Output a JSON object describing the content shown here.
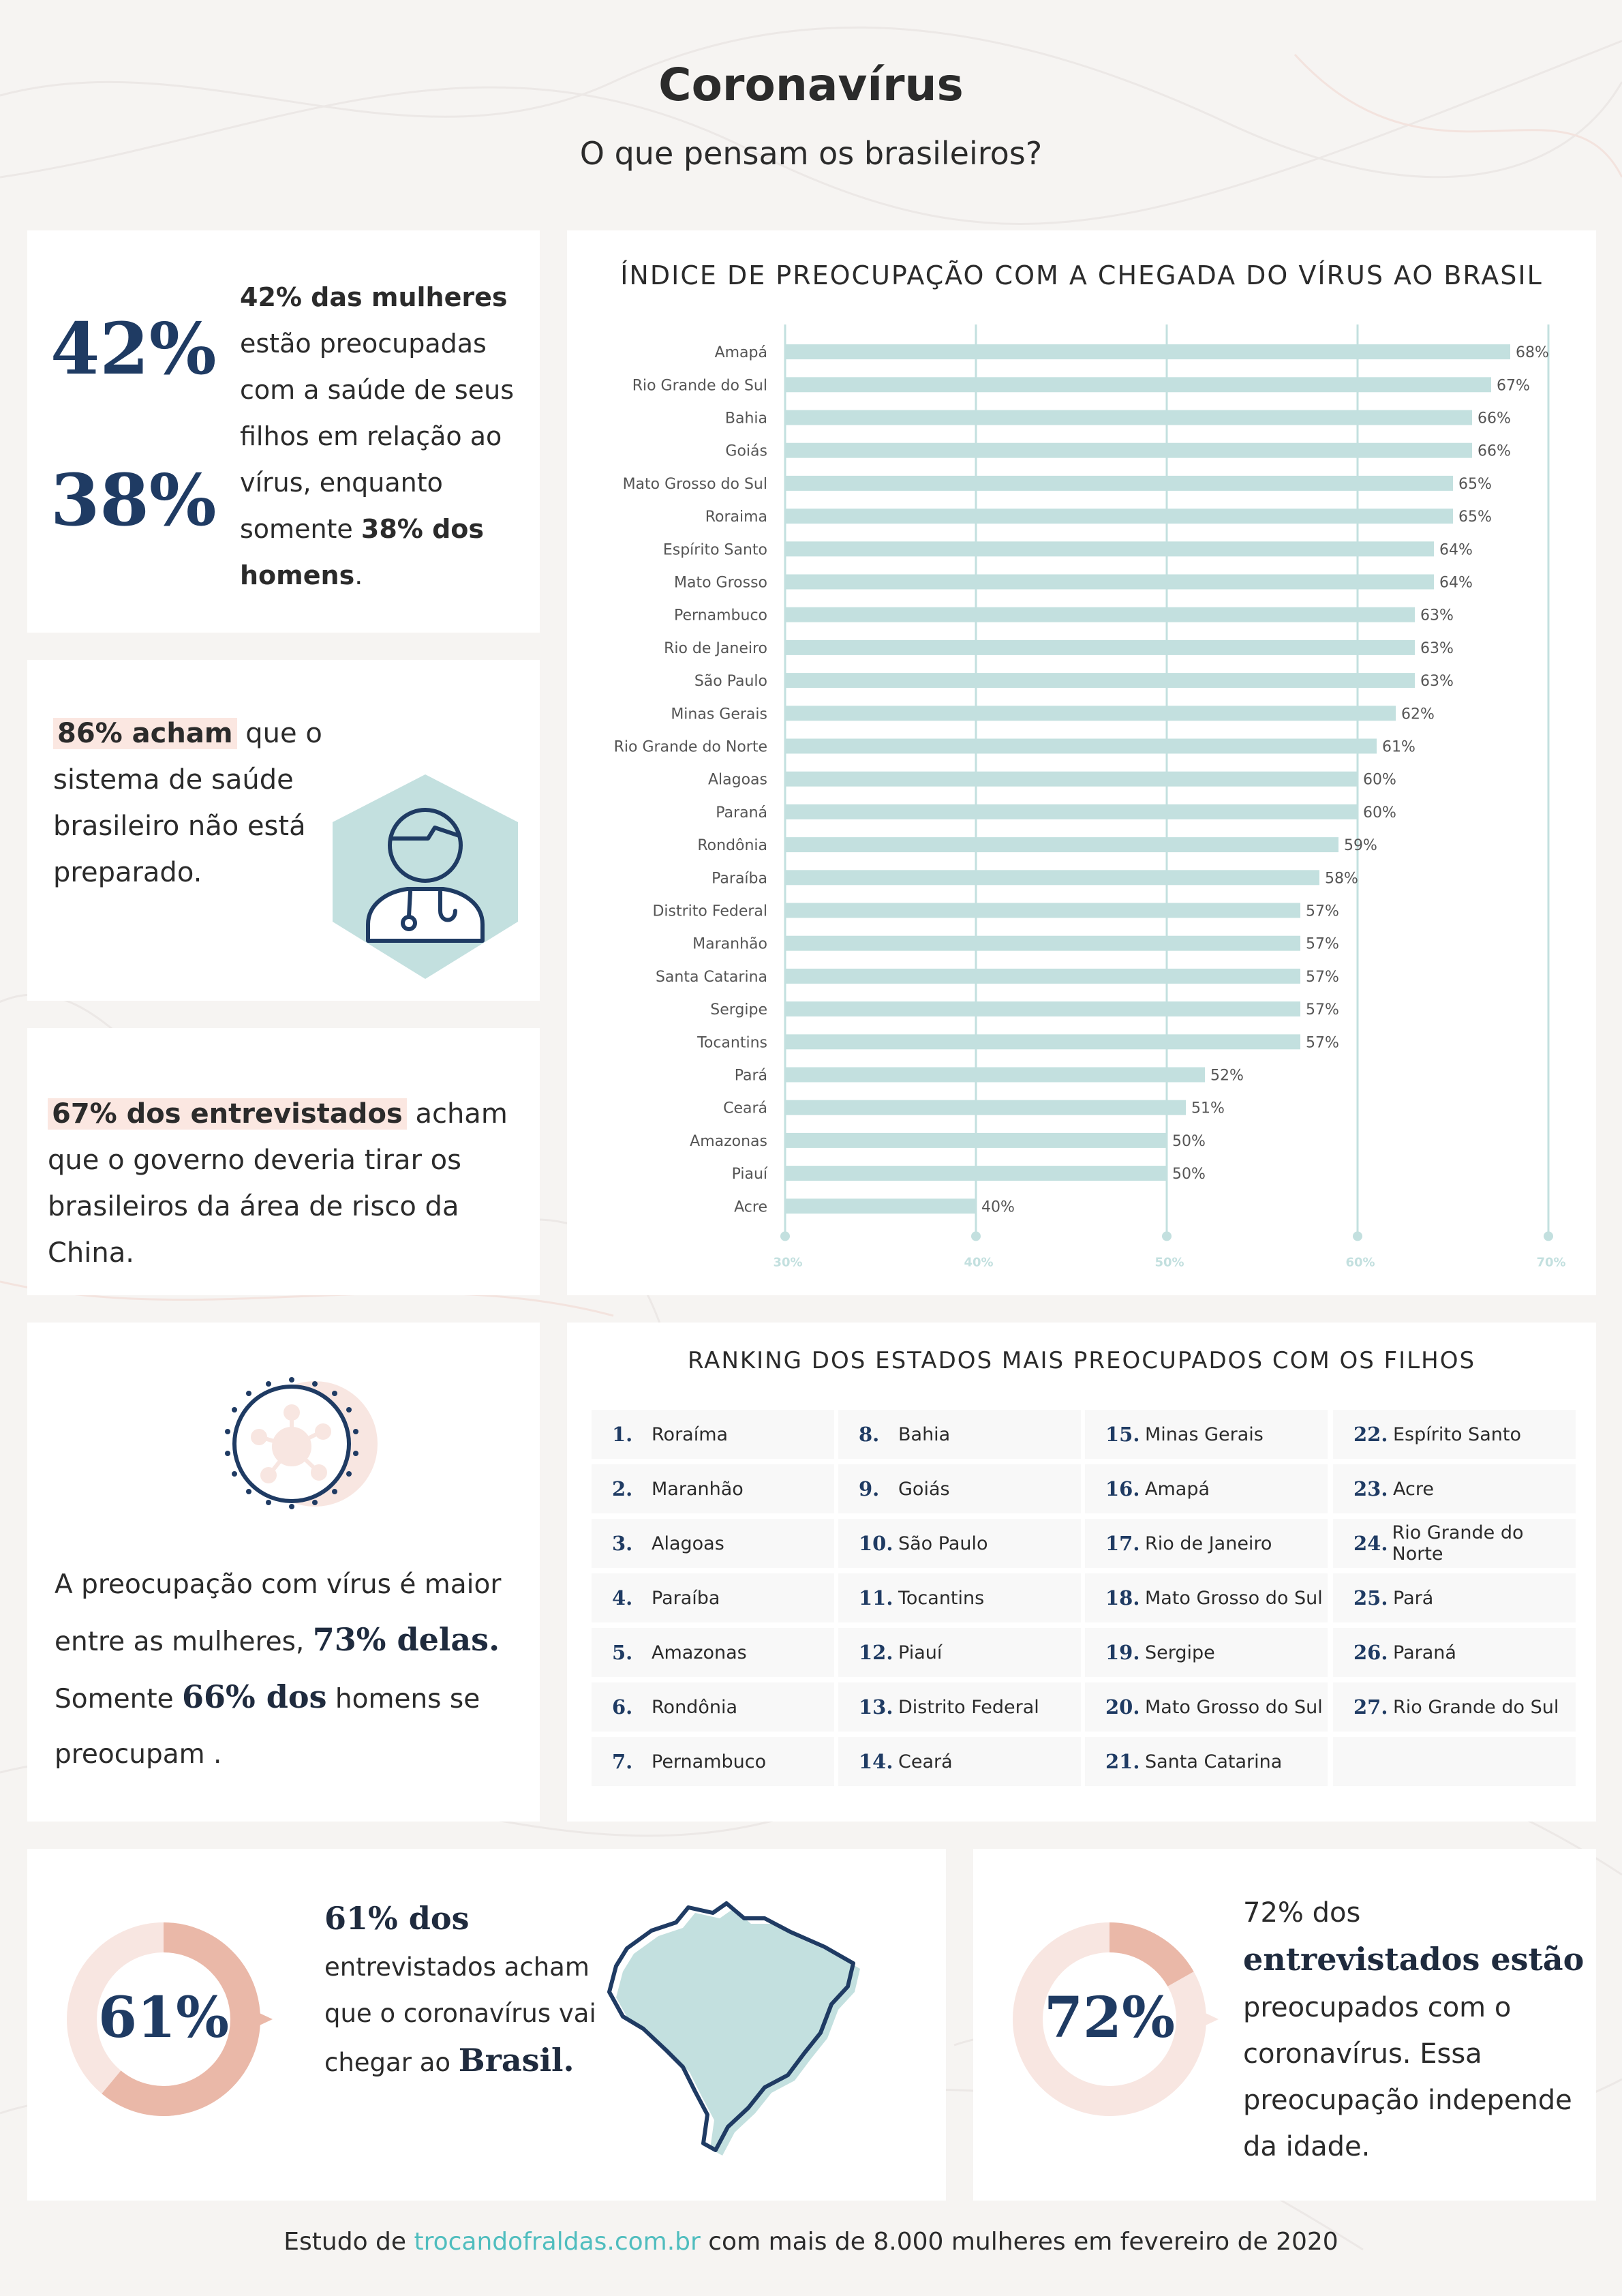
{
  "header": {
    "title": "Coronavírus",
    "subtitle": "O que pensam os brasileiros?"
  },
  "card_gender_health": {
    "pct_women": "42%",
    "pct_men": "38%",
    "text_bold_1": "42% das mulheres",
    "text_1": " estão preocupadas com a saúde de seus filhos em relação ao vírus, enquanto somente ",
    "text_bold_2": "38% dos homens",
    "text_2": "."
  },
  "card_health_system": {
    "highlight": "86% acham",
    "text": " que o sistema de saúde brasileiro não está preparado.",
    "icon": "doctor-icon"
  },
  "card_government": {
    "highlight": "67% dos entrevistados",
    "text": " acham que o governo deveria tirar os brasileiros da área de risco da China."
  },
  "card_women_men": {
    "icon": "virus-icon",
    "text_1": "A preocupação com vírus é maior entre as mulheres, ",
    "bold_1": "73% delas.",
    "text_2": " Somente ",
    "bold_2": "66% dos",
    "text_3": " homens se preocupam ."
  },
  "card_arrival": {
    "donut_label": "61%",
    "value": 61,
    "bold_1": "61% dos",
    "text_1": " entrevistados acham que o coronavírus vai chegar ao ",
    "bold_2": "Brasil.",
    "icon": "brazil-map-icon"
  },
  "card_worried": {
    "donut_label": "72%",
    "value": 72,
    "text_1": "72% dos ",
    "bold_1": "entrevistados estão",
    "text_2": " preocupados com o coronavírus. Essa preocupação independe da idade."
  },
  "ranking": {
    "title": "RANKING DOS ESTADOS MAIS PREOCUPADOS COM OS FILHOS",
    "columns": [
      [
        {
          "num": "1.",
          "state": "Roraíma"
        },
        {
          "num": "2.",
          "state": "Maranhão"
        },
        {
          "num": "3.",
          "state": "Alagoas"
        },
        {
          "num": "4.",
          "state": "Paraíba"
        },
        {
          "num": "5.",
          "state": "Amazonas"
        },
        {
          "num": "6.",
          "state": "Rondônia"
        },
        {
          "num": "7.",
          "state": "Pernambuco"
        }
      ],
      [
        {
          "num": "8.",
          "state": "Bahia"
        },
        {
          "num": "9.",
          "state": "Goiás"
        },
        {
          "num": "10.",
          "state": "São Paulo"
        },
        {
          "num": "11.",
          "state": "Tocantins"
        },
        {
          "num": "12.",
          "state": "Piauí"
        },
        {
          "num": "13.",
          "state": "Distrito Federal"
        },
        {
          "num": "14.",
          "state": "Ceará"
        }
      ],
      [
        {
          "num": "15.",
          "state": "Minas Gerais"
        },
        {
          "num": "16.",
          "state": "Amapá"
        },
        {
          "num": "17.",
          "state": "Rio de Janeiro"
        },
        {
          "num": "18.",
          "state": "Mato Grosso do Sul"
        },
        {
          "num": "19.",
          "state": "Sergipe"
        },
        {
          "num": "20.",
          "state": "Mato Grosso do Sul"
        },
        {
          "num": "21.",
          "state": "Santa Catarina"
        }
      ],
      [
        {
          "num": "22.",
          "state": "Espírito Santo"
        },
        {
          "num": "23.",
          "state": "Acre"
        },
        {
          "num": "24.",
          "state": "Rio Grande do Norte"
        },
        {
          "num": "25.",
          "state": "Pará"
        },
        {
          "num": "26.",
          "state": "Paraná"
        },
        {
          "num": "27.",
          "state": "Rio Grande do Sul"
        }
      ]
    ]
  },
  "footer": {
    "prefix": "Estudo de ",
    "link": "trocandofraldas.com.br",
    "suffix": " com mais de 8.000 mulheres em fevereiro de 2020"
  },
  "colors": {
    "navy": "#1f3b63",
    "bar": "#c3e0df",
    "grid": "#c3e0df",
    "tick": "#c3e0df",
    "salmon": "#eab8a8",
    "salmon_light": "#f8e6e1",
    "link": "#4fbdbe"
  },
  "chart_data": {
    "type": "bar",
    "orientation": "horizontal",
    "title": "ÍNDICE DE PREOCUPAÇÃO COM A CHEGADA DO VÍRUS AO BRASIL",
    "categories": [
      "Amapá",
      "Rio Grande do Sul",
      "Bahia",
      "Goiás",
      "Mato Grosso do Sul",
      "Roraima",
      "Espírito Santo",
      "Mato Grosso",
      "Pernambuco",
      "Rio de Janeiro",
      "São Paulo",
      "Minas Gerais",
      "Rio Grande do Norte",
      "Alagoas",
      "Paraná",
      "Rondônia",
      "Paraíba",
      "Distrito Federal",
      "Maranhão",
      "Santa Catarina",
      "Sergipe",
      "Tocantins",
      "Pará",
      "Ceará",
      "Amazonas",
      "Piauí",
      "Acre"
    ],
    "values": [
      68,
      67,
      66,
      66,
      65,
      65,
      64,
      64,
      63,
      63,
      63,
      62,
      61,
      60,
      60,
      59,
      58,
      57,
      57,
      57,
      57,
      57,
      52,
      51,
      50,
      50,
      40
    ],
    "value_labels": [
      "68%",
      "67%",
      "66%",
      "66%",
      "65%",
      "65%",
      "64%",
      "64%",
      "63%",
      "63%",
      "63%",
      "62%",
      "61%",
      "60%",
      "60%",
      "59%",
      "58%",
      "57%",
      "57%",
      "57%",
      "57%",
      "57%",
      "52%",
      "51%",
      "50%",
      "50%",
      "40%"
    ],
    "xlim": [
      30,
      70
    ],
    "x_ticks": [
      30,
      40,
      50,
      60,
      70
    ],
    "x_tick_labels": [
      "30%",
      "40%",
      "50%",
      "60%",
      "70%"
    ],
    "grid": true,
    "legend": "none"
  }
}
